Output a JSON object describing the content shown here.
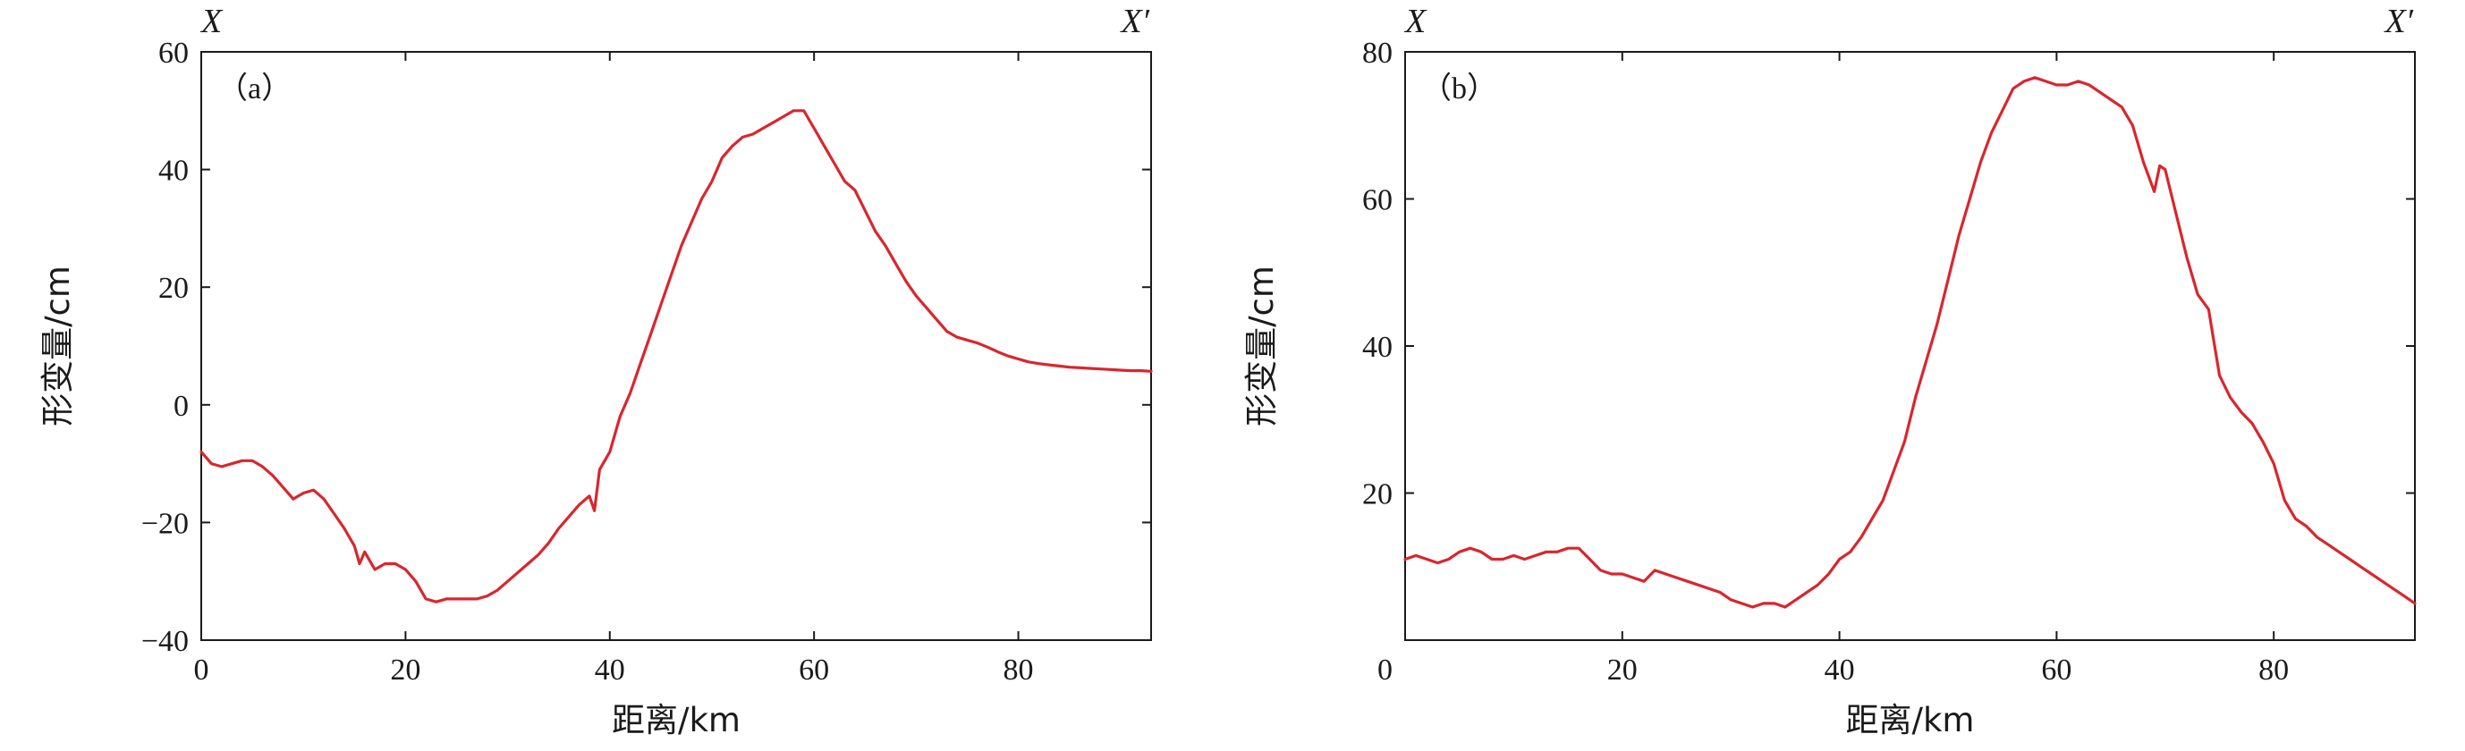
{
  "colors": {
    "series": "#d9262e",
    "axis": "#1a1a1a"
  },
  "chart_data": [
    {
      "type": "line",
      "panel_label": "（a）",
      "endpoints": {
        "left": "X",
        "right": "X′"
      },
      "xlabel": "距离/km",
      "ylabel": "形变量/cm",
      "xlim": [
        0,
        93
      ],
      "ylim": [
        -40,
        60
      ],
      "xticks": [
        0,
        20,
        40,
        60,
        80
      ],
      "yticks": [
        -40,
        -20,
        0,
        20,
        40,
        60
      ],
      "ytick_labels": [
        "−40",
        "−20",
        "0",
        "20",
        "40",
        "60"
      ],
      "series": [
        {
          "x": [
            0,
            1,
            2,
            3,
            4,
            5,
            6,
            7,
            8,
            9,
            10,
            11,
            12,
            13,
            14,
            15,
            15.5,
            16,
            17,
            18,
            19,
            20,
            21,
            22,
            23,
            24,
            25,
            26,
            27,
            28,
            29,
            30,
            31,
            32,
            33,
            34,
            35,
            36,
            37,
            38,
            38.5,
            39,
            40,
            41,
            42,
            43,
            44,
            45,
            46,
            47,
            48,
            49,
            50,
            51,
            52,
            53,
            54,
            55,
            56,
            57,
            58,
            59,
            60,
            61,
            62,
            63,
            64,
            65,
            66,
            67,
            68,
            69,
            70,
            71,
            72,
            73,
            74,
            75,
            76,
            77,
            78,
            79,
            80,
            81,
            82,
            83,
            84,
            85,
            86,
            87,
            88,
            89,
            90,
            91,
            92,
            93
          ],
          "y": [
            -8,
            -10,
            -10.5,
            -10,
            -9.5,
            -9.5,
            -10.5,
            -12,
            -14,
            -16,
            -15,
            -14.5,
            -16,
            -18.5,
            -21,
            -24,
            -27,
            -25,
            -28,
            -27,
            -27,
            -28,
            -30,
            -33,
            -33.5,
            -33,
            -33,
            -33,
            -33,
            -32.5,
            -31.5,
            -30,
            -28.5,
            -27,
            -25.5,
            -23.5,
            -21,
            -19,
            -17,
            -15.5,
            -18,
            -11,
            -8,
            -2,
            2,
            7,
            12,
            17,
            22,
            27,
            31,
            35,
            38,
            42,
            44,
            45.5,
            46,
            47,
            48,
            49,
            50,
            50,
            47,
            44,
            41,
            38,
            36.5,
            33,
            29.5,
            27,
            24,
            21,
            18.5,
            16.5,
            14.5,
            12.5,
            11.5,
            11,
            10.5,
            9.8,
            9,
            8.3,
            7.8,
            7.3,
            7,
            6.8,
            6.6,
            6.4,
            6.3,
            6.2,
            6.1,
            6,
            5.9,
            5.8,
            5.8,
            5.7
          ]
        }
      ]
    },
    {
      "type": "line",
      "panel_label": "（b）",
      "endpoints": {
        "left": "X",
        "right": "X′"
      },
      "xlabel": "距离/km",
      "ylabel": "形变量/cm",
      "xlim": [
        0,
        93
      ],
      "ylim": [
        0,
        80
      ],
      "xticks": [
        0,
        20,
        40,
        60,
        80
      ],
      "yticks": [
        0,
        20,
        40,
        60,
        80
      ],
      "ytick_labels": [
        "0",
        "20",
        "40",
        "60",
        "80"
      ],
      "series": [
        {
          "x": [
            0,
            1,
            2,
            3,
            4,
            5,
            6,
            7,
            8,
            9,
            10,
            11,
            12,
            13,
            14,
            15,
            16,
            17,
            18,
            19,
            20,
            21,
            22,
            23,
            24,
            25,
            26,
            27,
            28,
            29,
            30,
            31,
            32,
            33,
            34,
            35,
            36,
            37,
            38,
            39,
            40,
            41,
            42,
            43,
            44,
            45,
            46,
            47,
            48,
            49,
            50,
            51,
            52,
            53,
            54,
            55,
            56,
            57,
            58,
            59,
            60,
            61,
            62,
            63,
            64,
            65,
            66,
            67,
            68,
            69,
            69.5,
            70,
            71,
            72,
            73,
            74,
            75,
            76,
            77,
            78,
            79,
            80,
            81,
            82,
            83,
            84,
            85,
            86,
            87,
            88,
            89,
            90,
            91,
            92,
            93
          ],
          "y": [
            11,
            11.5,
            11,
            10.5,
            11,
            12,
            12.5,
            12,
            11,
            11,
            11.5,
            11,
            11.5,
            12,
            12,
            12.5,
            12.5,
            11,
            9.5,
            9,
            9,
            8.5,
            8,
            9.5,
            9,
            8.5,
            8,
            7.5,
            7,
            6.5,
            5.5,
            5,
            4.5,
            5,
            5,
            4.5,
            5.5,
            6.5,
            7.5,
            9,
            11,
            12,
            14,
            16.5,
            19,
            23,
            27,
            33,
            38,
            43,
            49,
            55,
            60,
            65,
            69,
            72,
            75,
            76,
            76.5,
            76,
            75.5,
            75.5,
            76,
            75.5,
            74.5,
            73.5,
            72.5,
            70,
            65,
            61,
            64.5,
            64,
            58,
            52,
            47,
            45,
            36,
            33,
            31,
            29.5,
            27,
            24,
            19,
            16.5,
            15.5,
            14,
            13,
            12,
            11,
            10,
            9,
            8,
            7,
            6,
            5
          ]
        }
      ]
    }
  ]
}
